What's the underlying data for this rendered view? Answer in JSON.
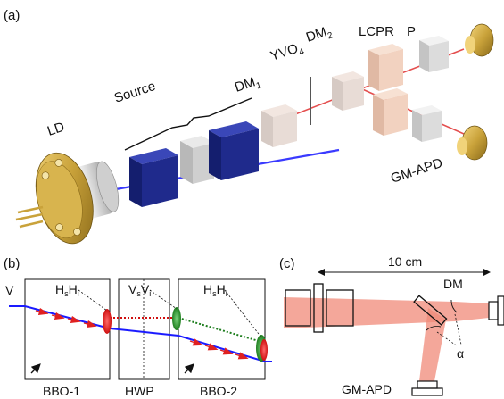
{
  "panels": {
    "a": {
      "tag": "(a)",
      "labels": {
        "ld": "LD",
        "source": "Source",
        "dm1_main": "DM",
        "dm1_sub": "1",
        "yvo_main": "YVO",
        "yvo_sub": "4",
        "dm2_main": "DM",
        "dm2_sub": "2",
        "lcpr": "LCPR",
        "p": "P",
        "gm_apd": "GM-APD"
      }
    },
    "b": {
      "tag": "(b)",
      "v_label": "V",
      "crystals": [
        "BBO-1",
        "HWP",
        "BBO-2"
      ],
      "pair1": {
        "a": "H",
        "a_sub": "s",
        "b": "H",
        "b_sub": "i"
      },
      "pair2": {
        "a": "V",
        "a_sub": "s",
        "b": "V",
        "b_sub": "i"
      },
      "pair3": {
        "a": "H",
        "a_sub": "s",
        "b": "H",
        "b_sub": "i"
      }
    },
    "c": {
      "tag": "(c)",
      "scale": "10 cm",
      "dm": "DM",
      "alpha": "α",
      "gm_apd": "GM-APD"
    }
  },
  "colors": {
    "brass": "#c9a23a",
    "crystal_blue": "#1f2a8c",
    "pump_blue": "#3a3aff",
    "beam_red": "#e03030",
    "beam_pink": "#f08a78",
    "grey_block": "#d8d8d8",
    "peach_block": "#f2d2c0",
    "green_mode": "#2ea02e"
  }
}
